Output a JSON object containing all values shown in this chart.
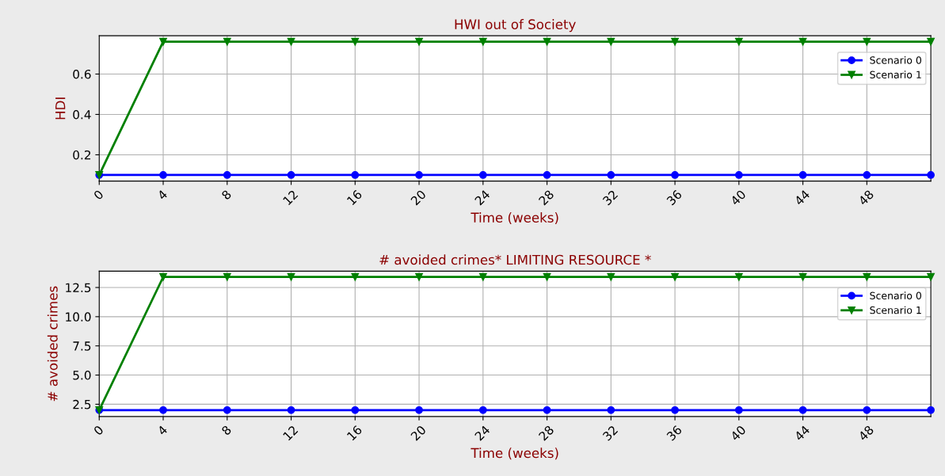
{
  "chart_data": [
    {
      "type": "line",
      "title": "HWI out of Society",
      "xlabel": "Time (weeks)",
      "ylabel": "HDI",
      "x": [
        0,
        4,
        8,
        12,
        16,
        20,
        24,
        28,
        32,
        36,
        40,
        44,
        48,
        52
      ],
      "series": [
        {
          "name": "Scenario 0",
          "color": "#0000ff",
          "marker": "circle",
          "values": [
            0.1,
            0.1,
            0.1,
            0.1,
            0.1,
            0.1,
            0.1,
            0.1,
            0.1,
            0.1,
            0.1,
            0.1,
            0.1,
            0.1
          ]
        },
        {
          "name": "Scenario 1",
          "color": "#008000",
          "marker": "triangle",
          "values": [
            0.1,
            0.76,
            0.76,
            0.76,
            0.76,
            0.76,
            0.76,
            0.76,
            0.76,
            0.76,
            0.76,
            0.76,
            0.76,
            0.76
          ]
        }
      ],
      "xlim": [
        0,
        52
      ],
      "xticks": [
        0,
        4,
        8,
        12,
        16,
        20,
        24,
        28,
        32,
        36,
        40,
        44,
        48
      ],
      "ylim": [
        0.07,
        0.79
      ],
      "yticks": [
        0.2,
        0.4,
        0.6
      ],
      "grid": true,
      "legend": "top right"
    },
    {
      "type": "line",
      "title": "# avoided crimes* LIMITING RESOURCE *",
      "xlabel": "Time (weeks)",
      "ylabel": "# avoided crimes",
      "x": [
        0,
        4,
        8,
        12,
        16,
        20,
        24,
        28,
        32,
        36,
        40,
        44,
        48,
        52
      ],
      "series": [
        {
          "name": "Scenario 0",
          "color": "#0000ff",
          "marker": "circle",
          "values": [
            2.0,
            2.0,
            2.0,
            2.0,
            2.0,
            2.0,
            2.0,
            2.0,
            2.0,
            2.0,
            2.0,
            2.0,
            2.0,
            2.0
          ]
        },
        {
          "name": "Scenario 1",
          "color": "#008000",
          "marker": "triangle",
          "values": [
            2.0,
            13.4,
            13.4,
            13.4,
            13.4,
            13.4,
            13.4,
            13.4,
            13.4,
            13.4,
            13.4,
            13.4,
            13.4,
            13.4
          ]
        }
      ],
      "xlim": [
        0,
        52
      ],
      "xticks": [
        0,
        4,
        8,
        12,
        16,
        20,
        24,
        28,
        32,
        36,
        40,
        44,
        48
      ],
      "ylim": [
        1.45,
        13.9
      ],
      "yticks": [
        2.5,
        {
          "value": 5,
          "label": "5.0"
        },
        7.5,
        {
          "value": 10,
          "label": "10.0"
        },
        12.5
      ],
      "grid": true,
      "legend": "top right"
    }
  ]
}
